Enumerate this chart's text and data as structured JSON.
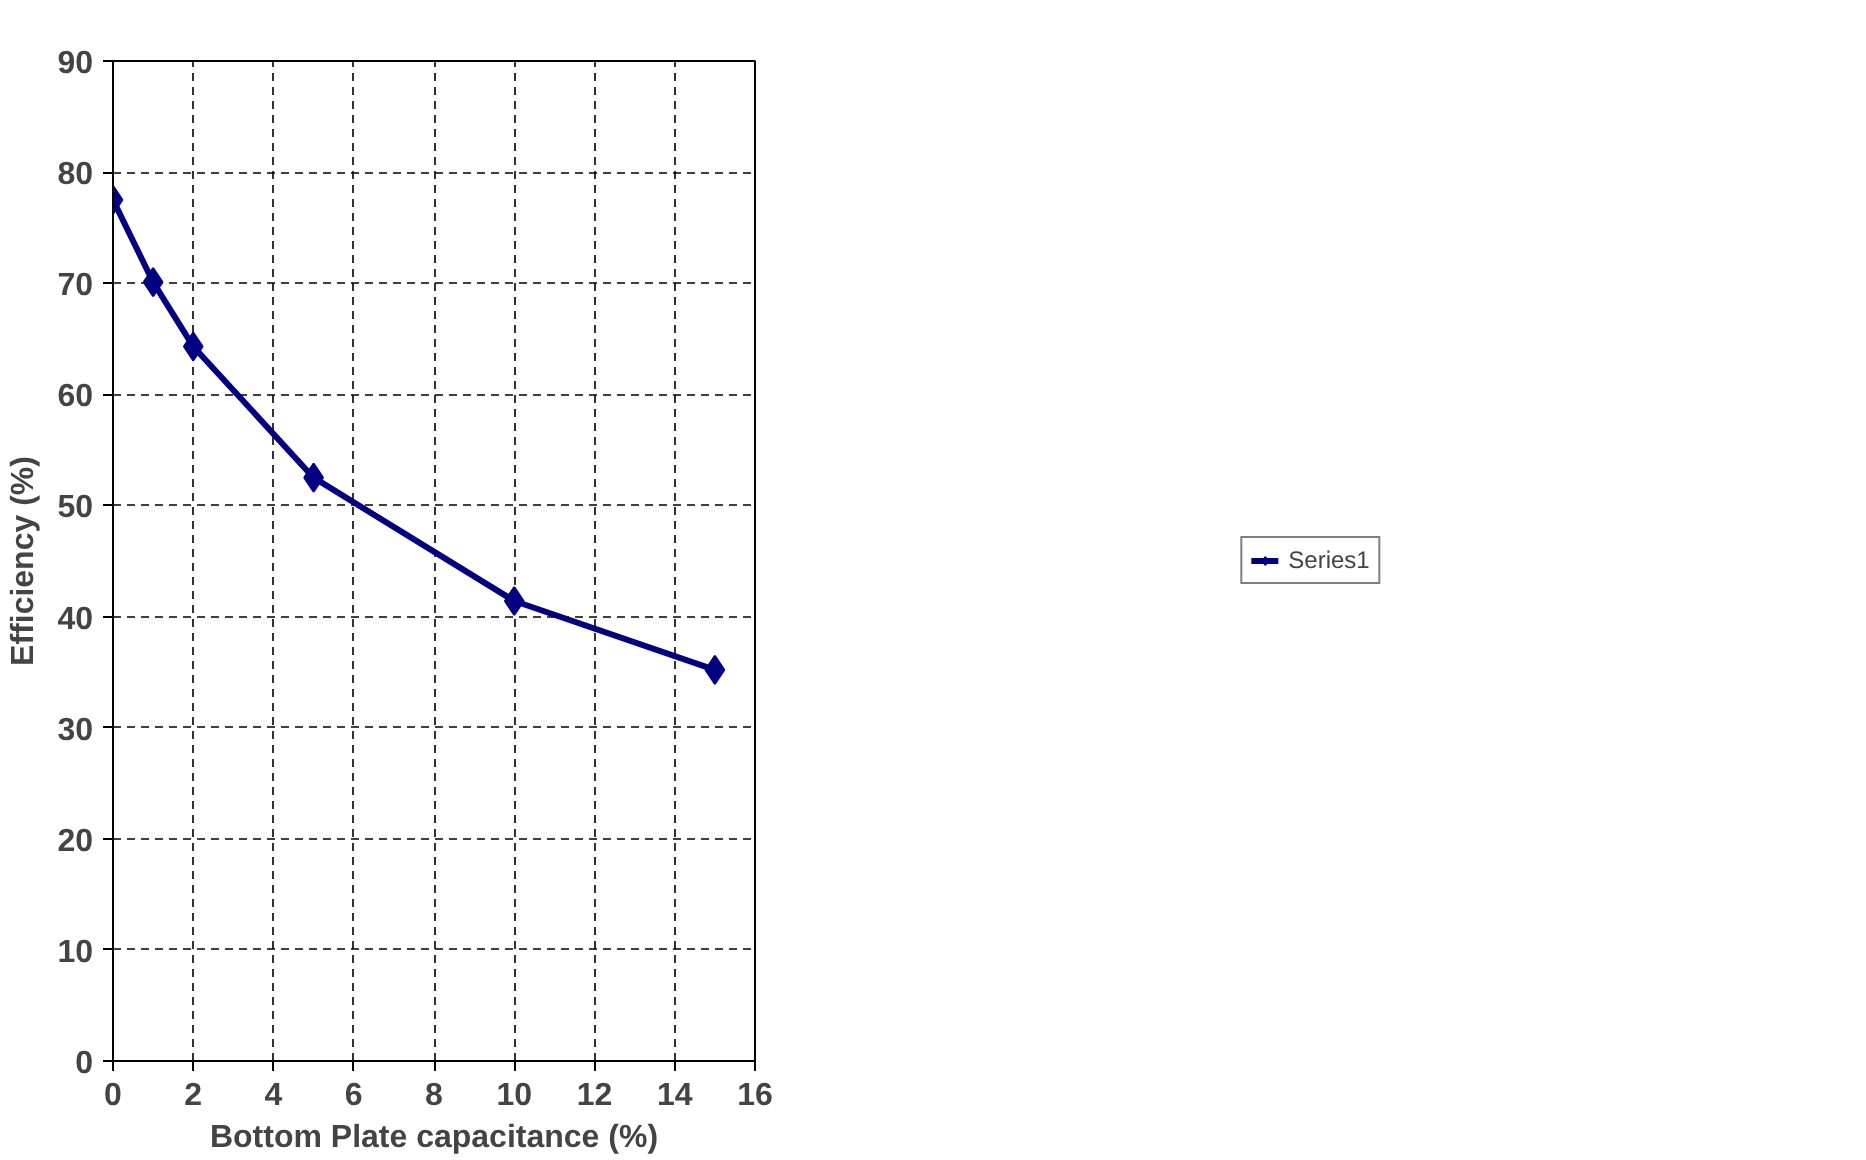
{
  "chart_data": {
    "type": "line",
    "xlabel": "Bottom Plate capacitance (%)",
    "ylabel": "Efficiency (%)",
    "x": [
      0,
      1,
      2,
      5,
      10,
      15
    ],
    "series": [
      {
        "name": "Series1",
        "color": "#000080",
        "values": [
          77.5,
          70.1,
          64.3,
          52.5,
          41.4,
          35.2
        ]
      }
    ],
    "xlim": [
      0,
      16
    ],
    "xticks": [
      0,
      2,
      4,
      6,
      8,
      10,
      12,
      14,
      16
    ],
    "ylim": [
      0,
      90
    ],
    "yticks": [
      0,
      10,
      20,
      30,
      40,
      50,
      60,
      70,
      80,
      90
    ],
    "grid": true,
    "legend": "right",
    "marker": "diamond",
    "line_style": "solid"
  }
}
